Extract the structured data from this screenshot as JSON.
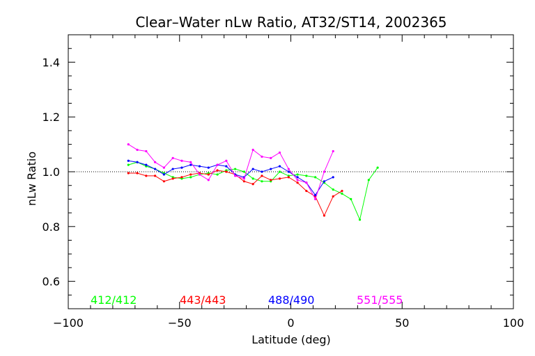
{
  "chart_data": {
    "type": "line",
    "title": "Clear–Water nLw Ratio, AT32/ST14, 2002365",
    "xlabel": "Latitude (deg)",
    "ylabel": "nLw Ratio",
    "xlim": [
      -100,
      100
    ],
    "ylim": [
      0.5,
      1.5
    ],
    "x_ticks": [
      -100,
      -50,
      0,
      50,
      100
    ],
    "x_tick_labels": [
      "−100",
      "−50",
      "0",
      "50",
      "100"
    ],
    "y_ticks": [
      0.6,
      0.8,
      1.0,
      1.2,
      1.4
    ],
    "y_tick_labels": [
      "0.6",
      "0.8",
      "1.0",
      "1.2",
      "1.4"
    ],
    "reference_line": {
      "y": 1.0,
      "style": "dotted"
    },
    "grid": false,
    "legend_placement": "bottom inside plot",
    "x": [
      -73,
      -69,
      -65,
      -61,
      -57,
      -53,
      -49,
      -45,
      -41,
      -37,
      -33,
      -29,
      -25,
      -21,
      -17,
      -13,
      -9,
      -5,
      -1,
      3,
      7,
      11,
      15,
      19,
      23,
      27,
      31,
      35,
      39,
      43
    ],
    "series": [
      {
        "name": "412/412",
        "color": "#00ff00",
        "values": [
          1.025,
          1.035,
          1.02,
          1.01,
          0.995,
          0.98,
          0.975,
          0.98,
          0.99,
          0.995,
          0.99,
          1.005,
          1.01,
          1.0,
          0.975,
          0.965,
          0.965,
          1.0,
          0.985,
          0.99,
          0.985,
          0.98,
          0.96,
          0.935,
          0.92,
          0.9,
          0.825,
          0.97,
          1.015,
          null
        ]
      },
      {
        "name": "443/443",
        "color": "#ff0000",
        "values": [
          0.995,
          0.995,
          0.985,
          0.985,
          0.965,
          0.975,
          0.98,
          0.99,
          0.995,
          0.99,
          1.005,
          1.0,
          0.99,
          0.965,
          0.955,
          0.985,
          0.97,
          0.975,
          0.98,
          0.96,
          0.93,
          0.91,
          0.84,
          0.91,
          0.93,
          null,
          null,
          null,
          null,
          null
        ]
      },
      {
        "name": "488/490",
        "color": "#0000ff",
        "values": [
          1.04,
          1.035,
          1.025,
          1.01,
          0.99,
          1.01,
          1.015,
          1.025,
          1.02,
          1.015,
          1.025,
          1.02,
          0.99,
          0.98,
          1.01,
          1.0,
          1.01,
          1.02,
          1.0,
          0.98,
          0.96,
          0.915,
          0.965,
          0.98,
          null,
          null,
          null,
          null,
          null,
          null
        ]
      },
      {
        "name": "551/555",
        "color": "#ff00ff",
        "values": [
          1.1,
          1.08,
          1.075,
          1.035,
          1.015,
          1.05,
          1.04,
          1.035,
          0.99,
          0.97,
          1.025,
          1.04,
          0.985,
          0.975,
          1.08,
          1.055,
          1.05,
          1.07,
          1.01,
          0.97,
          0.96,
          0.9,
          1.0,
          1.075,
          null,
          null,
          null,
          null,
          null,
          null
        ]
      }
    ]
  }
}
